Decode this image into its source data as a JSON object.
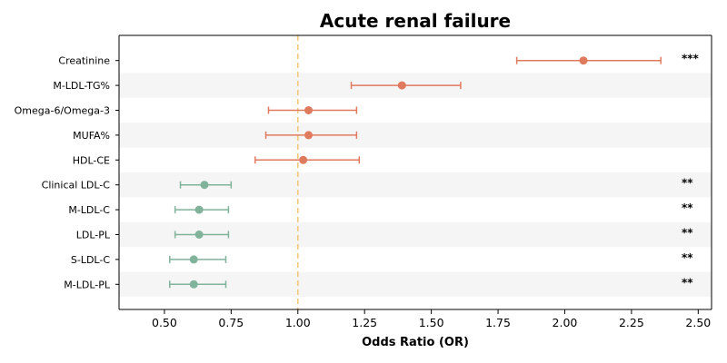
{
  "chart_data": {
    "type": "scatter",
    "subtype": "forest-plot",
    "title": "Acute renal failure",
    "xlabel": "Odds Ratio (OR)",
    "ylabel": "",
    "xlim": [
      0.33,
      2.55
    ],
    "xticks": [
      0.5,
      0.75,
      1.0,
      1.25,
      1.5,
      1.75,
      2.0,
      2.25,
      2.5
    ],
    "xtick_labels": [
      "0.50",
      "0.75",
      "1.00",
      "1.25",
      "1.50",
      "1.75",
      "2.00",
      "2.25",
      "2.50"
    ],
    "reference_line": 1.0,
    "reference_line_color": "#f5c77e",
    "positive_color": "#e07a5f",
    "negative_color": "#81b29a",
    "stripe_color": "#f5f5f5",
    "grid": false,
    "rows": [
      {
        "label": "Creatinine",
        "or": 2.07,
        "lower": 1.82,
        "upper": 2.36,
        "sig": "***"
      },
      {
        "label": "M-LDL-TG%",
        "or": 1.39,
        "lower": 1.2,
        "upper": 1.61,
        "sig": ""
      },
      {
        "label": "Omega-6/Omega-3",
        "or": 1.04,
        "lower": 0.89,
        "upper": 1.22,
        "sig": ""
      },
      {
        "label": "MUFA%",
        "or": 1.04,
        "lower": 0.88,
        "upper": 1.22,
        "sig": ""
      },
      {
        "label": "HDL-CE",
        "or": 1.02,
        "lower": 0.84,
        "upper": 1.23,
        "sig": ""
      },
      {
        "label": "Clinical LDL-C",
        "or": 0.65,
        "lower": 0.56,
        "upper": 0.75,
        "sig": "**"
      },
      {
        "label": "M-LDL-C",
        "or": 0.63,
        "lower": 0.54,
        "upper": 0.74,
        "sig": "**"
      },
      {
        "label": "LDL-PL",
        "or": 0.63,
        "lower": 0.54,
        "upper": 0.74,
        "sig": "**"
      },
      {
        "label": "S-LDL-C",
        "or": 0.61,
        "lower": 0.52,
        "upper": 0.73,
        "sig": "**"
      },
      {
        "label": "M-LDL-PL",
        "or": 0.61,
        "lower": 0.52,
        "upper": 0.73,
        "sig": "**"
      }
    ]
  }
}
